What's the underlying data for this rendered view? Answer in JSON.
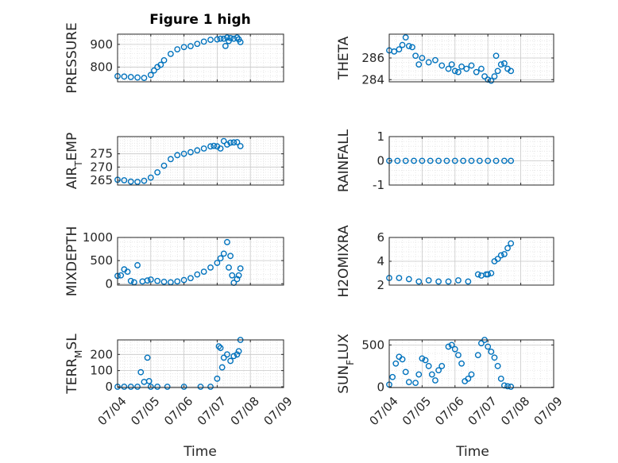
{
  "title": "Figure 1 high",
  "chart_data": [
    {
      "id": "pressure",
      "type": "scatter",
      "ylabel": "PRESSURE",
      "ylim": [
        735,
        945
      ],
      "yticks": [
        800,
        900
      ],
      "x": [
        0,
        0.2,
        0.4,
        0.6,
        0.8,
        1.0,
        1.1,
        1.2,
        1.3,
        1.4,
        1.6,
        1.8,
        2.0,
        2.2,
        2.4,
        2.6,
        2.8,
        3.0,
        3.1,
        3.2,
        3.25,
        3.3,
        3.35,
        3.4,
        3.5,
        3.6,
        3.65,
        3.7
      ],
      "y": [
        760,
        758,
        756,
        754,
        752,
        765,
        785,
        800,
        810,
        830,
        858,
        878,
        888,
        892,
        902,
        912,
        920,
        922,
        925,
        925,
        893,
        930,
        915,
        928,
        925,
        930,
        922,
        910
      ]
    },
    {
      "id": "theta",
      "type": "scatter",
      "ylabel": "THETA",
      "ylim": [
        283.8,
        288.2
      ],
      "yticks": [
        284,
        286
      ],
      "x": [
        0,
        0.15,
        0.3,
        0.4,
        0.5,
        0.6,
        0.7,
        0.8,
        0.9,
        1.0,
        1.2,
        1.4,
        1.6,
        1.8,
        1.9,
        2.0,
        2.1,
        2.2,
        2.35,
        2.5,
        2.65,
        2.8,
        2.9,
        3.0,
        3.1,
        3.2,
        3.25,
        3.3,
        3.4,
        3.5,
        3.6,
        3.7
      ],
      "y": [
        286.7,
        286.6,
        286.8,
        287.2,
        287.9,
        287.1,
        287.0,
        286.2,
        285.4,
        286.0,
        285.6,
        285.8,
        285.3,
        285.0,
        285.4,
        284.8,
        284.7,
        285.2,
        285.0,
        285.3,
        284.7,
        285.0,
        284.3,
        284.0,
        283.9,
        284.3,
        286.2,
        284.8,
        285.4,
        285.5,
        285.0,
        284.8
      ]
    },
    {
      "id": "air_temp",
      "type": "scatter",
      "ylabel": "AIR_TEMP",
      "ylim": [
        263.2,
        281.5
      ],
      "yticks": [
        265,
        270,
        275
      ],
      "x": [
        0,
        0.2,
        0.4,
        0.6,
        0.8,
        1.0,
        1.2,
        1.4,
        1.6,
        1.8,
        2.0,
        2.2,
        2.4,
        2.6,
        2.8,
        2.9,
        3.0,
        3.1,
        3.2,
        3.3,
        3.4,
        3.5,
        3.6,
        3.7
      ],
      "y": [
        265.2,
        265.0,
        264.5,
        264.4,
        264.8,
        266.0,
        268.0,
        270.5,
        273.0,
        274.5,
        275.0,
        275.6,
        276.3,
        277.0,
        277.8,
        278.0,
        277.8,
        277.0,
        279.8,
        278.5,
        279.2,
        279.3,
        279.4,
        277.9
      ]
    },
    {
      "id": "rainfall",
      "type": "scatter",
      "ylabel": "RAINFALL",
      "ylim": [
        -1,
        1
      ],
      "yticks": [
        -1,
        0,
        1
      ],
      "x": [
        0,
        0.25,
        0.5,
        0.75,
        1.0,
        1.25,
        1.5,
        1.75,
        2.0,
        2.25,
        2.5,
        2.75,
        3.0,
        3.25,
        3.5,
        3.7
      ],
      "y": [
        0,
        0,
        0,
        0,
        0,
        0,
        0,
        0,
        0,
        0,
        0,
        0,
        0,
        0,
        0,
        0
      ]
    },
    {
      "id": "mixdepth",
      "type": "scatter",
      "ylabel": "MIXDEPTH",
      "ylim": [
        -30,
        1000
      ],
      "yticks": [
        0,
        500,
        1000
      ],
      "x": [
        0,
        0.1,
        0.2,
        0.3,
        0.4,
        0.5,
        0.6,
        0.75,
        0.9,
        1.0,
        1.2,
        1.4,
        1.6,
        1.8,
        2.0,
        2.2,
        2.4,
        2.6,
        2.8,
        3.0,
        3.1,
        3.2,
        3.3,
        3.35,
        3.4,
        3.45,
        3.5,
        3.6,
        3.65,
        3.7
      ],
      "y": [
        170,
        180,
        310,
        260,
        60,
        30,
        400,
        50,
        70,
        90,
        60,
        40,
        30,
        50,
        80,
        120,
        200,
        260,
        350,
        450,
        550,
        650,
        900,
        350,
        600,
        180,
        20,
        100,
        180,
        330
      ]
    },
    {
      "id": "h2omixra",
      "type": "scatter",
      "ylabel": "H2OMIXRA",
      "ylim": [
        2,
        6
      ],
      "yticks": [
        2,
        4,
        6
      ],
      "x": [
        0,
        0.3,
        0.6,
        0.9,
        1.2,
        1.5,
        1.8,
        2.1,
        2.4,
        2.7,
        2.8,
        2.95,
        3.0,
        3.1,
        3.2,
        3.3,
        3.4,
        3.5,
        3.6,
        3.7
      ],
      "y": [
        2.6,
        2.6,
        2.5,
        2.3,
        2.4,
        2.3,
        2.3,
        2.4,
        2.3,
        2.9,
        2.8,
        2.9,
        2.9,
        3.0,
        4.0,
        4.2,
        4.5,
        4.6,
        5.1,
        5.5
      ]
    },
    {
      "id": "terr_msl",
      "type": "scatter",
      "ylabel": "TERR_MSL",
      "ylim": [
        -5,
        290
      ],
      "yticks": [
        0,
        100,
        200
      ],
      "x": [
        0,
        0.2,
        0.4,
        0.6,
        0.7,
        0.8,
        0.9,
        0.95,
        1.0,
        1.2,
        1.5,
        2.0,
        2.5,
        2.8,
        3.0,
        3.05,
        3.1,
        3.15,
        3.2,
        3.3,
        3.4,
        3.5,
        3.6,
        3.65,
        3.7
      ],
      "y": [
        0,
        0,
        0,
        0,
        90,
        30,
        180,
        35,
        0,
        0,
        0,
        0,
        0,
        0,
        50,
        250,
        240,
        120,
        180,
        200,
        160,
        190,
        200,
        220,
        290
      ]
    },
    {
      "id": "sun_flux",
      "type": "scatter",
      "ylabel": "SUN_FLUX",
      "ylim": [
        -5,
        560
      ],
      "yticks": [
        0,
        500
      ],
      "x": [
        0,
        0.1,
        0.2,
        0.3,
        0.4,
        0.5,
        0.6,
        0.8,
        0.9,
        1.0,
        1.1,
        1.2,
        1.3,
        1.4,
        1.5,
        1.6,
        1.8,
        1.9,
        2.0,
        2.1,
        2.2,
        2.3,
        2.4,
        2.5,
        2.7,
        2.8,
        2.9,
        3.0,
        3.1,
        3.2,
        3.3,
        3.4,
        3.5,
        3.6,
        3.7
      ],
      "y": [
        30,
        120,
        280,
        360,
        330,
        180,
        60,
        50,
        150,
        340,
        320,
        250,
        150,
        80,
        200,
        250,
        480,
        500,
        450,
        380,
        280,
        70,
        100,
        150,
        380,
        520,
        560,
        480,
        420,
        350,
        250,
        100,
        20,
        10,
        5
      ]
    }
  ],
  "x_axis": {
    "xlim": [
      0,
      5
    ],
    "tick_labels": [
      "07/04",
      "07/05",
      "07/06",
      "07/07",
      "07/08",
      "07/09"
    ],
    "label": "Time"
  },
  "colors": {
    "marker": "#0072BD",
    "axis": "#262626",
    "grid": "#c8c8c8",
    "grid_minor": "#e2e2e2"
  }
}
